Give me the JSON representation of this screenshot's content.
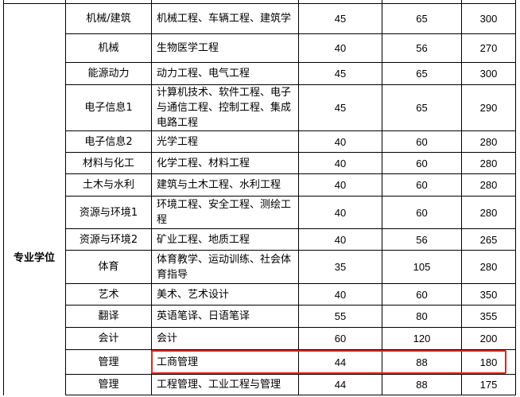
{
  "group_label": "专业学位",
  "highlight_color": "#e8221b",
  "rows": [
    {
      "category": "",
      "majors": "",
      "a": "",
      "b": "",
      "c": ""
    },
    {
      "category": "机械/建筑",
      "majors": "机械工程、车辆工程、建筑学",
      "a": "45",
      "b": "65",
      "c": "300"
    },
    {
      "category": "机械",
      "majors": "生物医学工程",
      "a": "40",
      "b": "56",
      "c": "270"
    },
    {
      "category": "能源动力",
      "majors": "动力工程、电气工程",
      "a": "45",
      "b": "65",
      "c": "300"
    },
    {
      "category": "电子信息1",
      "majors": "计算机技术、软件工程、电子与通信工程、控制工程、集成电路工程",
      "a": "45",
      "b": "65",
      "c": "290"
    },
    {
      "category": "电子信息2",
      "majors": "光学工程",
      "a": "40",
      "b": "60",
      "c": "280"
    },
    {
      "category": "材料与化工",
      "majors": "化学工程、材料工程",
      "a": "40",
      "b": "60",
      "c": "280"
    },
    {
      "category": "土木与水利",
      "majors": "建筑与土木工程、水利工程",
      "a": "40",
      "b": "60",
      "c": "280"
    },
    {
      "category": "资源与环境1",
      "majors": "环境工程、安全工程、测绘工程",
      "a": "40",
      "b": "60",
      "c": "280"
    },
    {
      "category": "资源与环境2",
      "majors": "矿业工程、地质工程",
      "a": "40",
      "b": "56",
      "c": "265"
    },
    {
      "category": "体育",
      "majors": "体育教学、运动训练、社会体育指导",
      "a": "35",
      "b": "105",
      "c": "280"
    },
    {
      "category": "艺术",
      "majors": "美术、艺术设计",
      "a": "40",
      "b": "60",
      "c": "350"
    },
    {
      "category": "翻译",
      "majors": "英语笔译、日语笔译",
      "a": "55",
      "b": "80",
      "c": "355"
    },
    {
      "category": "会计",
      "majors": "会计",
      "a": "60",
      "b": "120",
      "c": "200"
    },
    {
      "category": "管理",
      "majors": "工商管理",
      "a": "44",
      "b": "88",
      "c": "180",
      "highlighted": true
    },
    {
      "category": "管理",
      "majors": "工程管理、工业工程与管理",
      "a": "44",
      "b": "88",
      "c": "175"
    }
  ]
}
